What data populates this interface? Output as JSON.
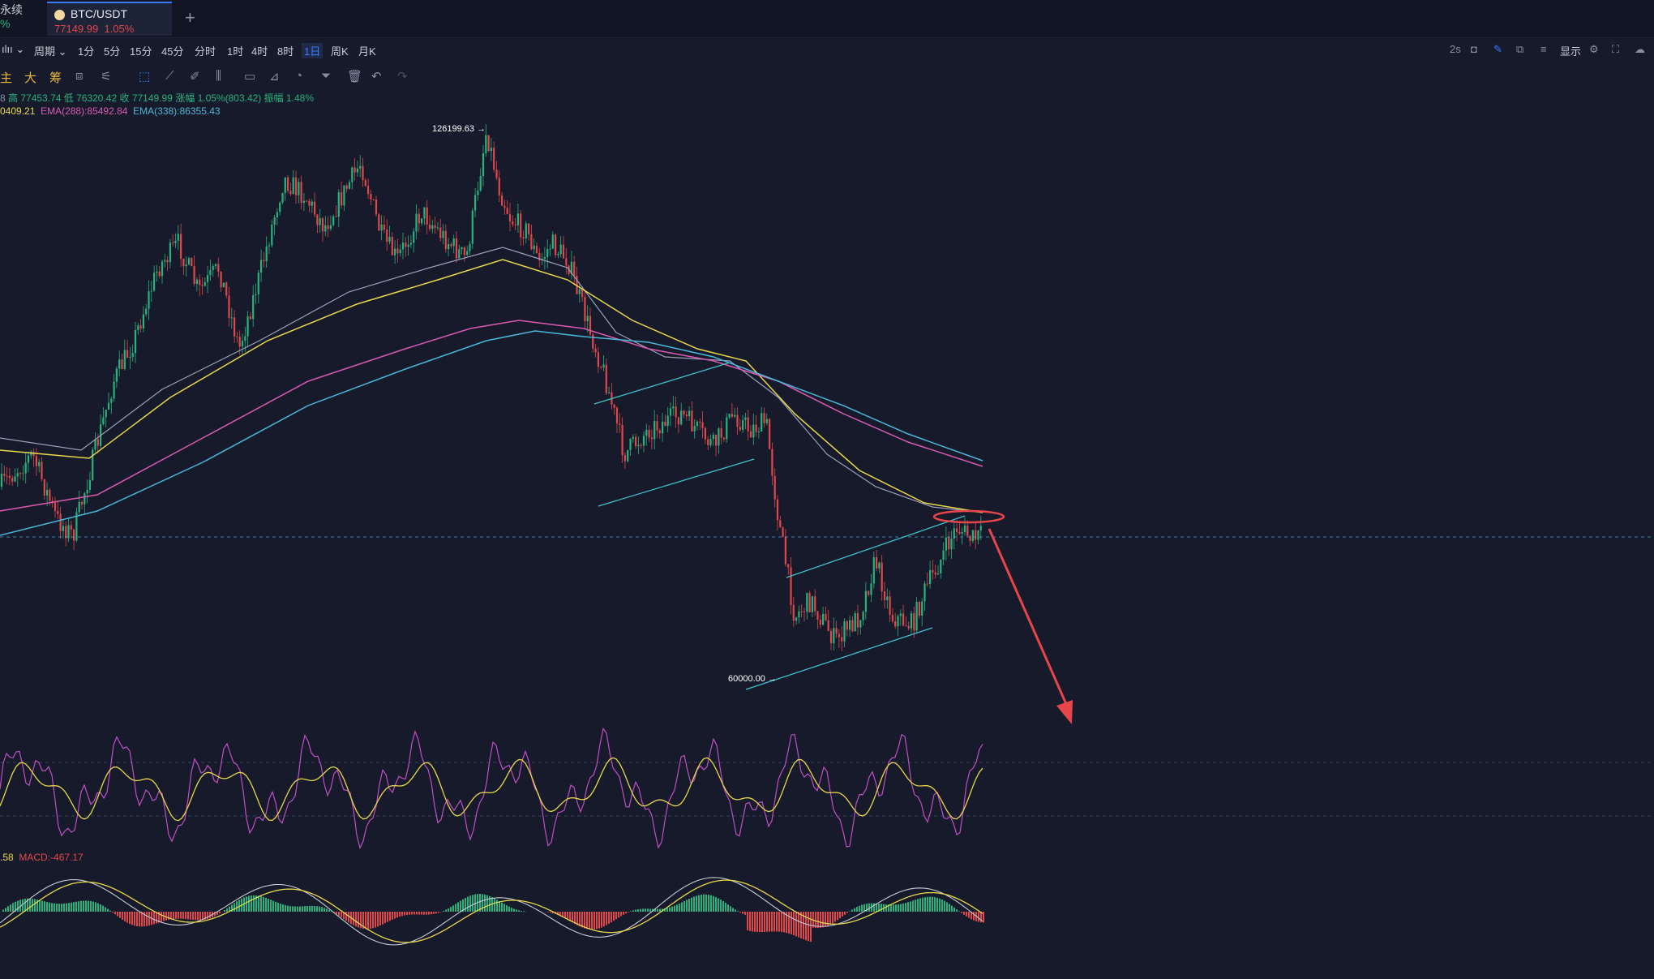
{
  "tabs": {
    "prev": {
      "label": "永续",
      "sub": "%"
    },
    "active": {
      "symbol": "BTC/USDT",
      "price": "77149.99",
      "change": "1.05%"
    }
  },
  "toolbar": {
    "chart_type": "ılıı",
    "period": "周期",
    "intervals": [
      "1分",
      "5分",
      "15分",
      "45分",
      "分时",
      "1时",
      "4时",
      "8时",
      "1日",
      "周K",
      "月K"
    ],
    "active_interval": "1日",
    "right": {
      "refresh": "2s",
      "display": "显示"
    }
  },
  "draw_tools": {
    "main": "主",
    "big": "大",
    "chip": "筹"
  },
  "ohlc": {
    "prefix": "8",
    "high": "高 77453.74",
    "low": "低 76320.42",
    "close": "收 77149.99",
    "change": "涨幅 1.05%(803.42)",
    "amplitude": "振幅 1.48%"
  },
  "ema": {
    "ema_a": "0409.21",
    "ema288": "EMA(288):85492.84",
    "ema338": "EMA(338):86355.43"
  },
  "macd": {
    "prefix": ".58",
    "macd": "MACD:-467.17"
  },
  "chart_data": {
    "type": "candlestick",
    "symbol": "BTC/USDT",
    "interval": "1日",
    "annotations": {
      "high": "126199.63",
      "low": "60000.00"
    },
    "last_close": 77149.99,
    "indicators": [
      "EMA(288)",
      "EMA(338)",
      "MACD"
    ]
  },
  "colors": {
    "up": "#26b37e",
    "down": "#e0474a",
    "bg": "#161a2b",
    "accent": "#3a7bfd"
  }
}
